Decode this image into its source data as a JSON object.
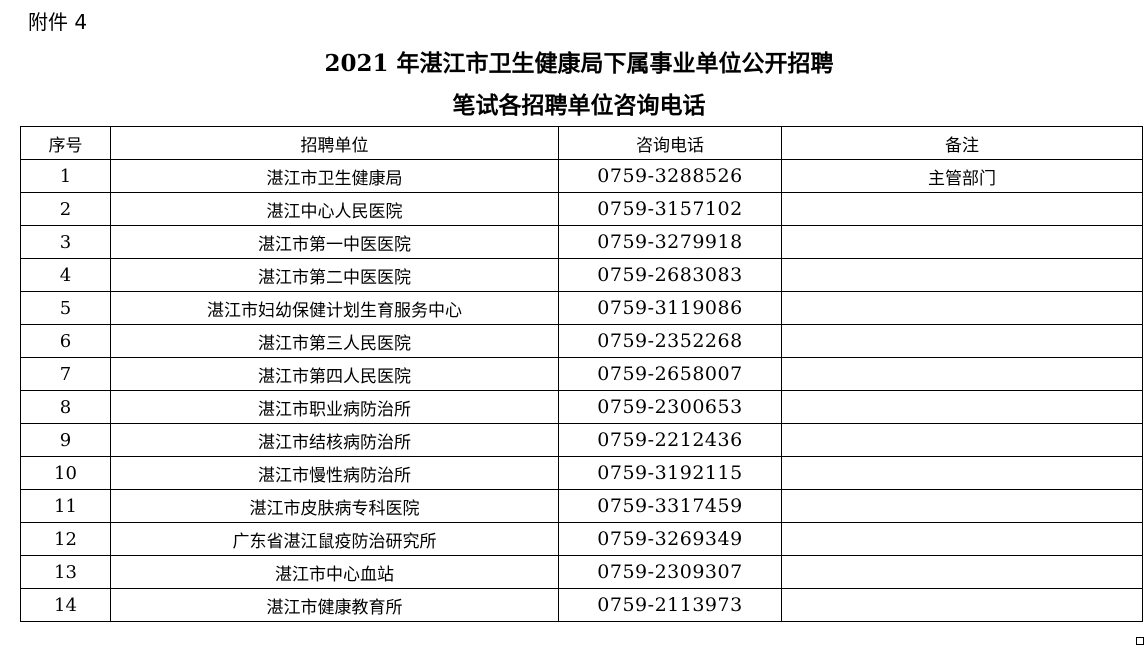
{
  "attachment_label": "附件 4",
  "title_line1": "2021 年湛江市卫生健康局下属事业单位公开招聘",
  "title_line2": "笔试各招聘单位咨询电话",
  "table": {
    "headers": [
      "序号",
      "招聘单位",
      "咨询电话",
      "备注"
    ],
    "rows": [
      {
        "no": "1",
        "unit": "湛江市卫生健康局",
        "phone": "0759-3288526",
        "note": "主管部门"
      },
      {
        "no": "2",
        "unit": "湛江中心人民医院",
        "phone": "0759-3157102",
        "note": ""
      },
      {
        "no": "3",
        "unit": "湛江市第一中医医院",
        "phone": "0759-3279918",
        "note": ""
      },
      {
        "no": "4",
        "unit": "湛江市第二中医医院",
        "phone": "0759-2683083",
        "note": ""
      },
      {
        "no": "5",
        "unit": "湛江市妇幼保健计划生育服务中心",
        "phone": "0759-3119086",
        "note": ""
      },
      {
        "no": "6",
        "unit": "湛江市第三人民医院",
        "phone": "0759-2352268",
        "note": ""
      },
      {
        "no": "7",
        "unit": "湛江市第四人民医院",
        "phone": "0759-2658007",
        "note": ""
      },
      {
        "no": "8",
        "unit": "湛江市职业病防治所",
        "phone": "0759-2300653",
        "note": ""
      },
      {
        "no": "9",
        "unit": "湛江市结核病防治所",
        "phone": "0759-2212436",
        "note": ""
      },
      {
        "no": "10",
        "unit": "湛江市慢性病防治所",
        "phone": "0759-3192115",
        "note": ""
      },
      {
        "no": "11",
        "unit": "湛江市皮肤病专科医院",
        "phone": "0759-3317459",
        "note": ""
      },
      {
        "no": "12",
        "unit": "广东省湛江鼠疫防治研究所",
        "phone": "0759-3269349",
        "note": ""
      },
      {
        "no": "13",
        "unit": "湛江市中心血站",
        "phone": "0759-2309307",
        "note": ""
      },
      {
        "no": "14",
        "unit": "湛江市健康教育所",
        "phone": "0759-2113973",
        "note": ""
      }
    ]
  }
}
